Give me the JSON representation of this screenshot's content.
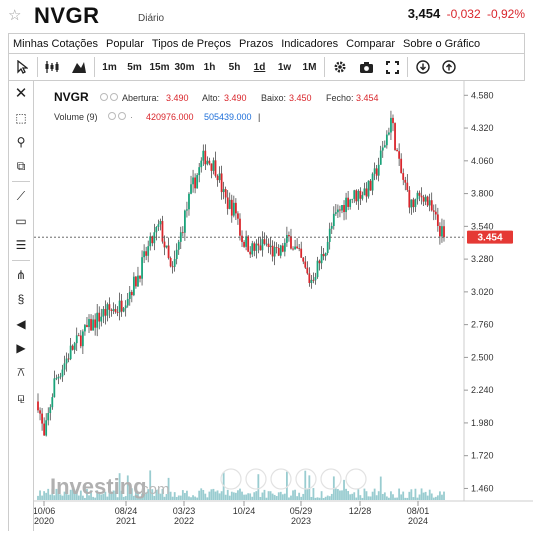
{
  "header": {
    "ticker": "NVGR",
    "frequency": "Diário",
    "last": "3,454",
    "change": "-0,032",
    "change_pct": "-0,92%",
    "star_icon": "star-icon"
  },
  "menu": [
    "Minhas Cotações",
    "Popular",
    "Tipos de Preços",
    "Prazos",
    "Indicadores",
    "Comparar",
    "Sobre o Gráfico"
  ],
  "toolbar": {
    "intervals": [
      "1m",
      "5m",
      "15m",
      "30m",
      "1h",
      "5h",
      "1d",
      "1w",
      "1M"
    ],
    "active_interval": "1d"
  },
  "legend": {
    "symbol": "NVGR",
    "open_label": "Abertura:",
    "open": "3.490",
    "high_label": "Alto:",
    "high": "3.490",
    "low_label": "Baixo:",
    "low": "3.450",
    "close_label": "Fecho:",
    "close": "3.454",
    "volume_label": "Volume (9)",
    "vol_1": "420976.000",
    "vol_2": "505439.000",
    "vol_sep": "|"
  },
  "chart_data": {
    "type": "candlestick",
    "y_ticks": [
      "4.580",
      "4.320",
      "4.060",
      "3.800",
      "3.540",
      "3.280",
      "3.020",
      "2.760",
      "2.500",
      "2.240",
      "1.980",
      "1.720",
      "1.460"
    ],
    "ylim": [
      1.4,
      4.63
    ],
    "x_ticks": [
      {
        "day": "10/06",
        "year": "2020"
      },
      {
        "day": "08/24",
        "year": "2021"
      },
      {
        "day": "03/23",
        "year": "2022"
      },
      {
        "day": "10/24",
        "year": ""
      },
      {
        "day": "05/29",
        "year": "2023"
      },
      {
        "day": "12/28",
        "year": ""
      },
      {
        "day": "08/01",
        "year": "2024"
      }
    ],
    "current_price": "3.454",
    "current_value": 3.454,
    "watermark": "Investing",
    "watermark_suffix": ".com",
    "colors": {
      "up": "#1aa37a",
      "down": "#d9262c",
      "wick": "#111111",
      "price_badge": "#e53935",
      "volume": "#7fbfc4"
    },
    "anchors": [
      [
        0,
        2.15
      ],
      [
        0.015,
        1.85
      ],
      [
        0.04,
        2.3
      ],
      [
        0.08,
        2.55
      ],
      [
        0.12,
        2.72
      ],
      [
        0.16,
        2.85
      ],
      [
        0.2,
        2.9
      ],
      [
        0.24,
        3.1
      ],
      [
        0.27,
        3.35
      ],
      [
        0.3,
        3.55
      ],
      [
        0.33,
        3.15
      ],
      [
        0.36,
        3.6
      ],
      [
        0.38,
        3.85
      ],
      [
        0.41,
        4.1
      ],
      [
        0.44,
        4.0
      ],
      [
        0.46,
        3.75
      ],
      [
        0.49,
        3.65
      ],
      [
        0.5,
        3.45
      ],
      [
        0.53,
        3.35
      ],
      [
        0.56,
        3.4
      ],
      [
        0.59,
        3.3
      ],
      [
        0.62,
        3.45
      ],
      [
        0.65,
        3.25
      ],
      [
        0.67,
        3.1
      ],
      [
        0.7,
        3.3
      ],
      [
        0.73,
        3.6
      ],
      [
        0.76,
        3.75
      ],
      [
        0.79,
        3.8
      ],
      [
        0.82,
        3.85
      ],
      [
        0.85,
        4.15
      ],
      [
        0.87,
        4.4
      ],
      [
        0.89,
        4.0
      ],
      [
        0.92,
        3.7
      ],
      [
        0.95,
        3.8
      ],
      [
        0.97,
        3.65
      ],
      [
        1.0,
        3.45
      ]
    ]
  }
}
